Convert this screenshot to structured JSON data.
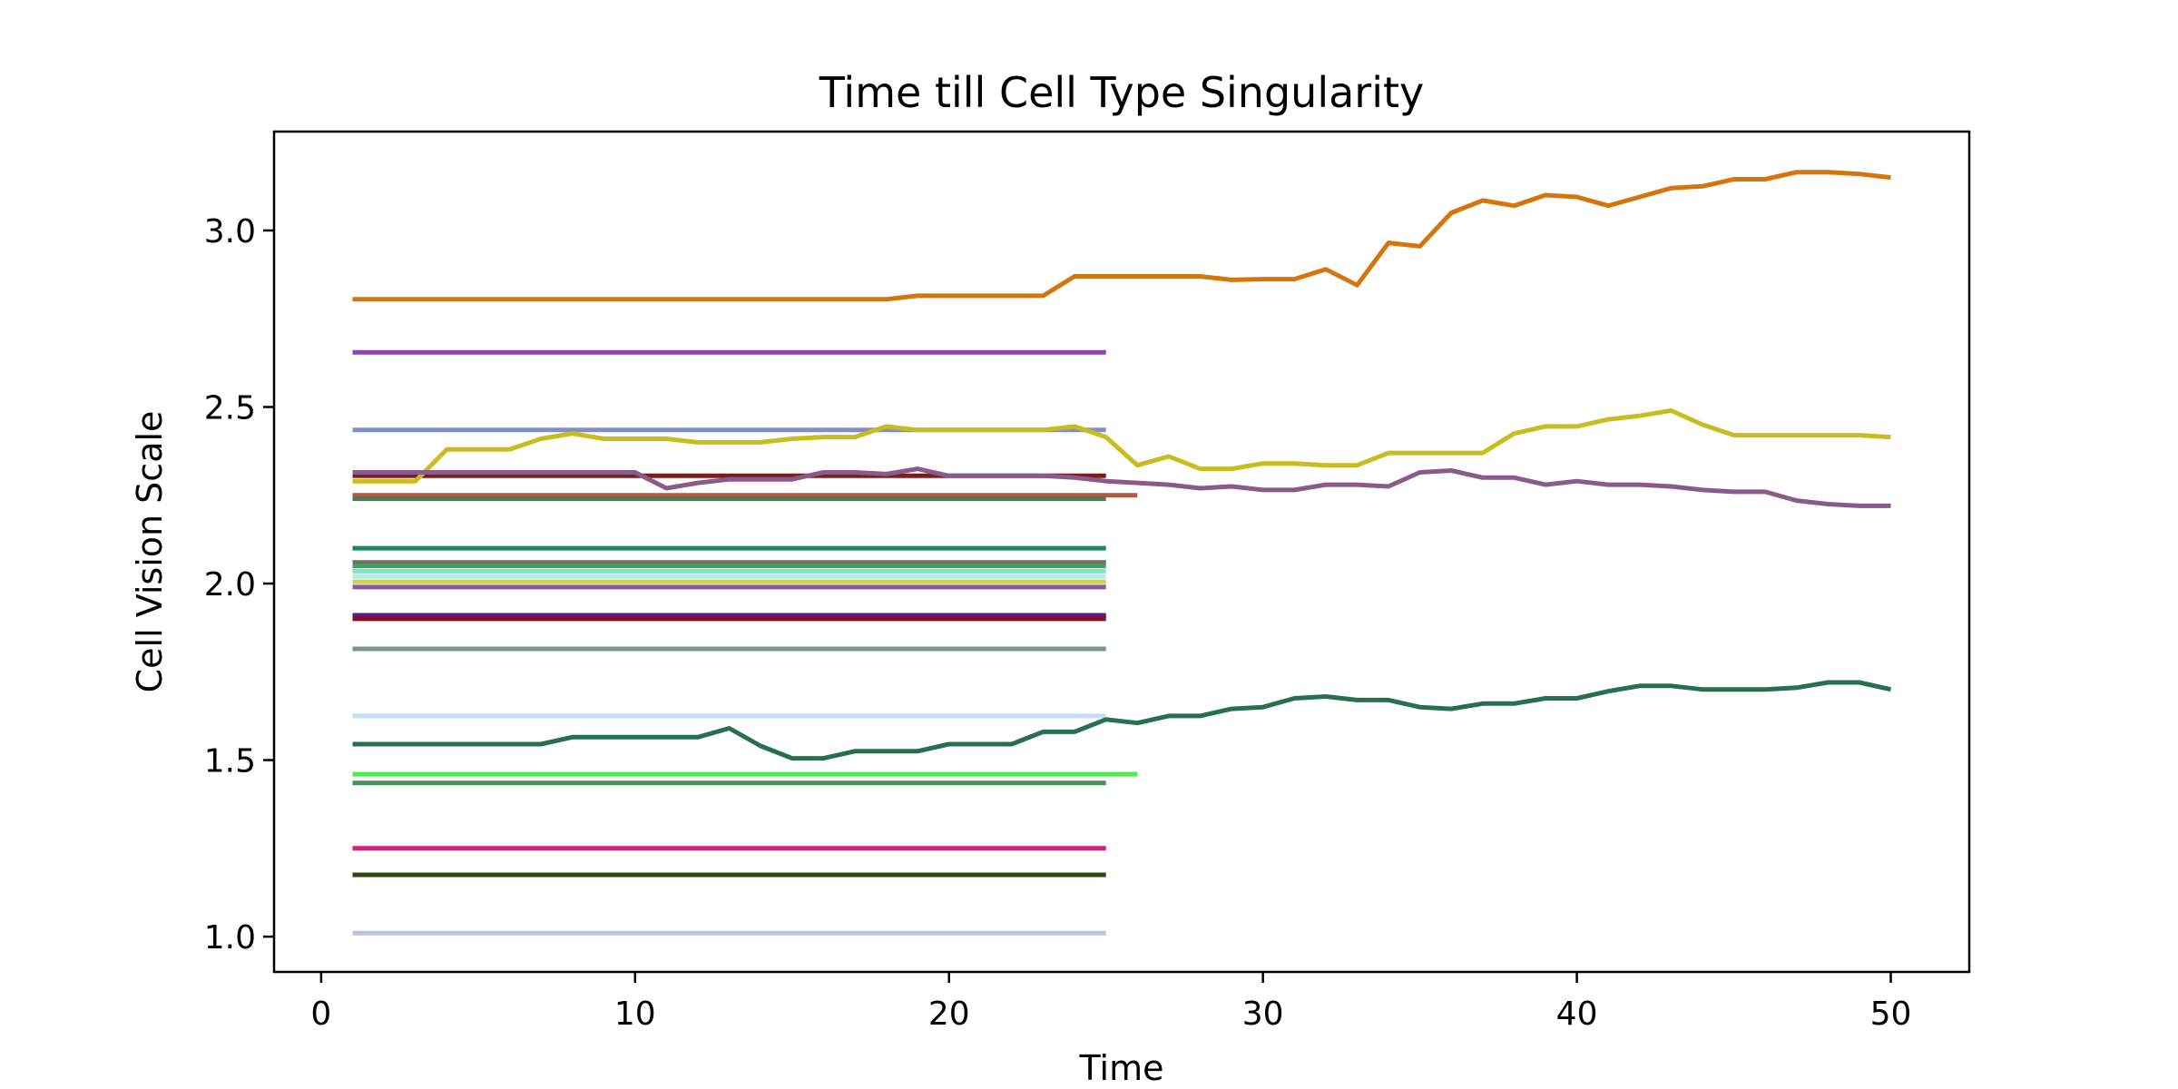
{
  "chart_data": {
    "type": "line",
    "title": "Time till Cell Type Singularity",
    "xlabel": "Time",
    "ylabel": "Cell Vision Scale",
    "xlim": [
      -1.5,
      52.5
    ],
    "ylim": [
      0.9,
      3.28
    ],
    "x_ticks": [
      0,
      10,
      20,
      30,
      40,
      50
    ],
    "y_ticks": [
      1.0,
      1.5,
      2.0,
      2.5,
      3.0
    ],
    "x_tick_labels": [
      "0",
      "10",
      "20",
      "30",
      "40",
      "50"
    ],
    "y_tick_labels": [
      "1.0",
      "1.5",
      "2.0",
      "2.5",
      "3.0"
    ],
    "grid": false,
    "legend": "none",
    "series": [
      {
        "color": "#8e44ad",
        "x": [
          1,
          25
        ],
        "y": [
          2.655,
          2.655
        ]
      },
      {
        "color": "#7f8fc9",
        "x": [
          1,
          25
        ],
        "y": [
          2.435,
          2.435
        ]
      },
      {
        "color": "#7b1e1e",
        "x": [
          1,
          25
        ],
        "y": [
          2.305,
          2.305
        ]
      },
      {
        "color": "#b05a3c",
        "x": [
          1,
          26
        ],
        "y": [
          2.25,
          2.25
        ]
      },
      {
        "color": "#4f7a5a",
        "x": [
          1,
          25
        ],
        "y": [
          2.24,
          2.24
        ]
      },
      {
        "color": "#1a8a5a",
        "x": [
          1,
          25
        ],
        "y": [
          2.1,
          2.1
        ]
      },
      {
        "color": "#6f6f5a",
        "x": [
          1,
          25
        ],
        "y": [
          2.06,
          2.06
        ]
      },
      {
        "color": "#3aa46a",
        "x": [
          1,
          25
        ],
        "y": [
          2.05,
          2.05
        ]
      },
      {
        "color": "#7fe3c8",
        "x": [
          1,
          25
        ],
        "y": [
          2.035,
          2.035
        ]
      },
      {
        "color": "#a7f1e9",
        "x": [
          1,
          25
        ],
        "y": [
          2.02,
          2.02
        ]
      },
      {
        "color": "#c8d84a",
        "x": [
          1,
          25
        ],
        "y": [
          2.005,
          2.005
        ]
      },
      {
        "color": "#8a5a9a",
        "x": [
          1,
          25
        ],
        "y": [
          1.99,
          1.99
        ]
      },
      {
        "color": "#5a1a8a",
        "x": [
          1,
          25
        ],
        "y": [
          1.91,
          1.91
        ]
      },
      {
        "color": "#8a0f1a",
        "x": [
          1,
          25
        ],
        "y": [
          1.9,
          1.9
        ]
      },
      {
        "color": "#76987f",
        "x": [
          1,
          25
        ],
        "y": [
          1.815,
          1.815
        ]
      },
      {
        "color": "#bfe0f7",
        "x": [
          1,
          25
        ],
        "y": [
          1.625,
          1.625
        ]
      },
      {
        "color": "#4cee4c",
        "x": [
          1,
          26
        ],
        "y": [
          1.46,
          1.46
        ]
      },
      {
        "color": "#4a8f5e",
        "x": [
          1,
          25
        ],
        "y": [
          1.435,
          1.435
        ]
      },
      {
        "color": "#d0217a",
        "x": [
          1,
          25
        ],
        "y": [
          1.25,
          1.25
        ]
      },
      {
        "color": "#2e4a12",
        "x": [
          1,
          25
        ],
        "y": [
          1.175,
          1.175
        ]
      },
      {
        "color": "#b9c4e0",
        "x": [
          1,
          25
        ],
        "y": [
          1.01,
          1.01
        ]
      },
      {
        "color": "#d4760c",
        "x": [
          1,
          2,
          3,
          4,
          5,
          6,
          7,
          8,
          9,
          10,
          11,
          12,
          13,
          14,
          15,
          16,
          17,
          18,
          19,
          20,
          21,
          22,
          23,
          24,
          25,
          26,
          27,
          28,
          29,
          30,
          31,
          32,
          33,
          34,
          35,
          36,
          37,
          38,
          39,
          40,
          41,
          42,
          43,
          44,
          45,
          46,
          47,
          48,
          49,
          50
        ],
        "y": [
          2.805,
          2.805,
          2.805,
          2.805,
          2.805,
          2.805,
          2.805,
          2.805,
          2.805,
          2.805,
          2.805,
          2.805,
          2.805,
          2.805,
          2.805,
          2.805,
          2.805,
          2.805,
          2.815,
          2.815,
          2.815,
          2.815,
          2.815,
          2.87,
          2.87,
          2.87,
          2.87,
          2.87,
          2.86,
          2.862,
          2.862,
          2.89,
          2.845,
          2.965,
          2.955,
          3.05,
          3.085,
          3.07,
          3.1,
          3.095,
          3.07,
          3.095,
          3.12,
          3.125,
          3.145,
          3.145,
          3.165,
          3.165,
          3.16,
          3.15
        ]
      },
      {
        "color": "#c8bd1e",
        "x": [
          1,
          2,
          3,
          4,
          5,
          6,
          7,
          8,
          9,
          10,
          11,
          12,
          13,
          14,
          15,
          16,
          17,
          18,
          19,
          20,
          21,
          22,
          23,
          24,
          25,
          26,
          27,
          28,
          29,
          30,
          31,
          32,
          33,
          34,
          35,
          36,
          37,
          38,
          39,
          40,
          41,
          42,
          43,
          44,
          45,
          46,
          47,
          48,
          49,
          50
        ],
        "y": [
          2.29,
          2.29,
          2.29,
          2.38,
          2.38,
          2.38,
          2.41,
          2.425,
          2.41,
          2.41,
          2.41,
          2.4,
          2.4,
          2.4,
          2.41,
          2.415,
          2.415,
          2.445,
          2.435,
          2.435,
          2.435,
          2.435,
          2.435,
          2.445,
          2.415,
          2.335,
          2.36,
          2.325,
          2.325,
          2.34,
          2.34,
          2.335,
          2.335,
          2.37,
          2.37,
          2.37,
          2.37,
          2.425,
          2.445,
          2.445,
          2.465,
          2.475,
          2.49,
          2.45,
          2.42,
          2.42,
          2.42,
          2.42,
          2.42,
          2.415
        ]
      },
      {
        "color": "#8a5a8a",
        "x": [
          1,
          2,
          3,
          4,
          5,
          6,
          7,
          8,
          9,
          10,
          11,
          12,
          13,
          14,
          15,
          16,
          17,
          18,
          19,
          20,
          21,
          22,
          23,
          24,
          25,
          26,
          27,
          28,
          29,
          30,
          31,
          32,
          33,
          34,
          35,
          36,
          37,
          38,
          39,
          40,
          41,
          42,
          43,
          44,
          45,
          46,
          47,
          48,
          49,
          50
        ],
        "y": [
          2.315,
          2.315,
          2.315,
          2.315,
          2.315,
          2.315,
          2.315,
          2.315,
          2.315,
          2.315,
          2.27,
          2.285,
          2.295,
          2.295,
          2.295,
          2.315,
          2.315,
          2.31,
          2.325,
          2.305,
          2.305,
          2.305,
          2.305,
          2.3,
          2.29,
          2.285,
          2.28,
          2.27,
          2.275,
          2.265,
          2.265,
          2.28,
          2.28,
          2.275,
          2.315,
          2.32,
          2.3,
          2.3,
          2.28,
          2.29,
          2.28,
          2.28,
          2.275,
          2.265,
          2.26,
          2.26,
          2.235,
          2.225,
          2.22,
          2.22
        ]
      },
      {
        "color": "#27704f",
        "x": [
          1,
          2,
          3,
          4,
          5,
          6,
          7,
          8,
          9,
          10,
          11,
          12,
          13,
          14,
          15,
          16,
          17,
          18,
          19,
          20,
          21,
          22,
          23,
          24,
          25,
          26,
          27,
          28,
          29,
          30,
          31,
          32,
          33,
          34,
          35,
          36,
          37,
          38,
          39,
          40,
          41,
          42,
          43,
          44,
          45,
          46,
          47,
          48,
          49,
          50
        ],
        "y": [
          1.545,
          1.545,
          1.545,
          1.545,
          1.545,
          1.545,
          1.545,
          1.565,
          1.565,
          1.565,
          1.565,
          1.565,
          1.59,
          1.54,
          1.505,
          1.505,
          1.525,
          1.525,
          1.525,
          1.545,
          1.545,
          1.545,
          1.58,
          1.58,
          1.615,
          1.605,
          1.625,
          1.625,
          1.645,
          1.65,
          1.675,
          1.68,
          1.67,
          1.67,
          1.65,
          1.645,
          1.66,
          1.66,
          1.675,
          1.675,
          1.695,
          1.71,
          1.71,
          1.7,
          1.7,
          1.7,
          1.705,
          1.72,
          1.72,
          1.7
        ]
      }
    ]
  }
}
